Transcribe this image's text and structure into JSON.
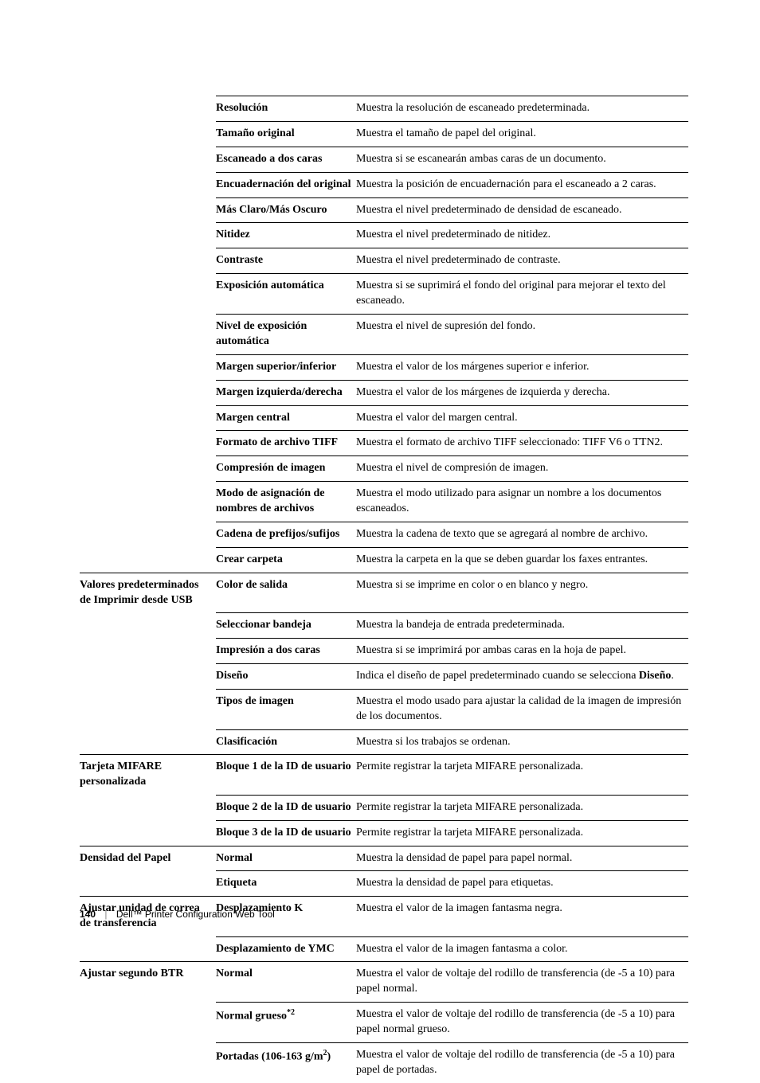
{
  "rows": [
    {
      "c1": "",
      "c2": "Resolución",
      "c3": "Muestra la resolución de escaneado predeterminada.",
      "c1bt": false
    },
    {
      "c1": "",
      "c2": "Tamaño original",
      "c3": "Muestra el tamaño de papel del original.",
      "c1bt": false
    },
    {
      "c1": "",
      "c2": "Escaneado a dos caras",
      "c3": "Muestra si se escanearán ambas caras de un documento.",
      "c1bt": false
    },
    {
      "c1": "",
      "c2": "Encuadernación del original",
      "c3": "Muestra la posición de encuadernación para el escaneado a 2 caras.",
      "c1bt": false
    },
    {
      "c1": "",
      "c2": "Más Claro/Más Oscuro",
      "c3": "Muestra el nivel predeterminado de densidad de escaneado.",
      "c1bt": false
    },
    {
      "c1": "",
      "c2": "Nitidez",
      "c3": "Muestra el nivel predeterminado de nitidez.",
      "c1bt": false
    },
    {
      "c1": "",
      "c2": "Contraste",
      "c3": "Muestra el nivel predeterminado de contraste.",
      "c1bt": false
    },
    {
      "c1": "",
      "c2": "Exposición automática",
      "c3": "Muestra si se suprimirá el fondo del original para mejorar el texto del escaneado.",
      "c1bt": false
    },
    {
      "c1": "",
      "c2": "Nivel de exposición automática",
      "c3": "Muestra el nivel de supresión del fondo.",
      "c1bt": false
    },
    {
      "c1": "",
      "c2": "Margen superior/inferior",
      "c3": "Muestra el valor de los márgenes superior e inferior.",
      "c1bt": false
    },
    {
      "c1": "",
      "c2": "Margen izquierda/derecha",
      "c3": "Muestra el valor de los márgenes de izquierda y derecha.",
      "c1bt": false
    },
    {
      "c1": "",
      "c2": "Margen central",
      "c3": "Muestra el valor del margen central.",
      "c1bt": false
    },
    {
      "c1": "",
      "c2": "Formato de archivo TIFF",
      "c3": "Muestra el formato de archivo TIFF seleccionado: TIFF V6 o TTN2.",
      "c1bt": false
    },
    {
      "c1": "",
      "c2": "Compresión de imagen",
      "c3": "Muestra el nivel de compresión de imagen.",
      "c1bt": false
    },
    {
      "c1": "",
      "c2": "Modo de asignación de nombres de archivos",
      "c3": "Muestra el modo utilizado para asignar un nombre a los documentos escaneados.",
      "c1bt": false
    },
    {
      "c1": "",
      "c2": "Cadena de prefijos/sufijos",
      "c3": "Muestra la cadena de texto que se agregará al nombre de archivo.",
      "c1bt": false
    },
    {
      "c1": "",
      "c2": "Crear carpeta",
      "c3": "Muestra la carpeta en la que se deben guardar los faxes entrantes.",
      "c1bt": false
    },
    {
      "c1": "Valores predeterminados de Imprimir desde USB",
      "c2": "Color de salida",
      "c3": "Muestra si se imprime en color o en blanco y negro.",
      "c1bt": true
    },
    {
      "c1": "",
      "c2": "Seleccionar bandeja",
      "c3": "Muestra la bandeja de entrada predeterminada.",
      "c1bt": false
    },
    {
      "c1": "",
      "c2": "Impresión a dos caras",
      "c3": "Muestra si se imprimirá por ambas caras en la hoja de papel.",
      "c1bt": false
    },
    {
      "c1": "",
      "c2": "Diseño",
      "c3_html": "Indica el diseño de papel predeterminado cuando se selecciona <b>Diseño</b>.",
      "c1bt": false
    },
    {
      "c1": "",
      "c2": "Tipos de imagen",
      "c3": "Muestra el modo usado para ajustar la calidad de la imagen de impresión de los documentos.",
      "c1bt": false
    },
    {
      "c1": "",
      "c2": "Clasificación",
      "c3": "Muestra si los trabajos se ordenan.",
      "c1bt": false
    },
    {
      "c1": "Tarjeta MIFARE personalizada",
      "c2": "Bloque 1 de la ID de usuario",
      "c3": "Permite registrar la tarjeta MIFARE personalizada.",
      "c1bt": true
    },
    {
      "c1": "",
      "c2": "Bloque 2 de la ID de usuario",
      "c3": "Permite registrar la tarjeta MIFARE personalizada.",
      "c1bt": false
    },
    {
      "c1": "",
      "c2": "Bloque 3 de la ID de usuario",
      "c3": "Permite registrar la tarjeta MIFARE personalizada.",
      "c1bt": false
    },
    {
      "c1": "Densidad del Papel",
      "c2": "Normal",
      "c3": "Muestra la densidad de papel para papel normal.",
      "c1bt": true
    },
    {
      "c1": "",
      "c2": "Etiqueta",
      "c3": "Muestra la densidad de papel para etiquetas.",
      "c1bt": false
    },
    {
      "c1": "Ajustar unidad de correa de transferencia",
      "c2": "Desplazamiento K",
      "c3": "Muestra el valor de la imagen fantasma negra.",
      "c1bt": true
    },
    {
      "c1": "",
      "c2": "Desplazamiento de YMC",
      "c3": "Muestra el valor de la imagen fantasma a color.",
      "c1bt": false
    },
    {
      "c1": "Ajustar segundo BTR",
      "c2": "Normal",
      "c3": "Muestra el valor de voltaje del rodillo de transferencia (de -5 a 10) para papel normal.",
      "c1bt": true
    },
    {
      "c1": "",
      "c2_html": "Normal grueso<span class=\"sup\">*2</span>",
      "c3": "Muestra el valor de voltaje del rodillo de transferencia (de -5 a 10) para papel normal grueso.",
      "c1bt": false
    },
    {
      "c1": "",
      "c2_html": "Portadas (106-163 g/m<span class=\"sup\">2</span>)",
      "c3": "Muestra el valor de voltaje del rodillo de transferencia (de -5 a 10) para papel de portadas.",
      "c1bt": false
    }
  ],
  "footer": {
    "page_number": "140",
    "title": "Dell™ Printer Configuration Web Tool"
  }
}
